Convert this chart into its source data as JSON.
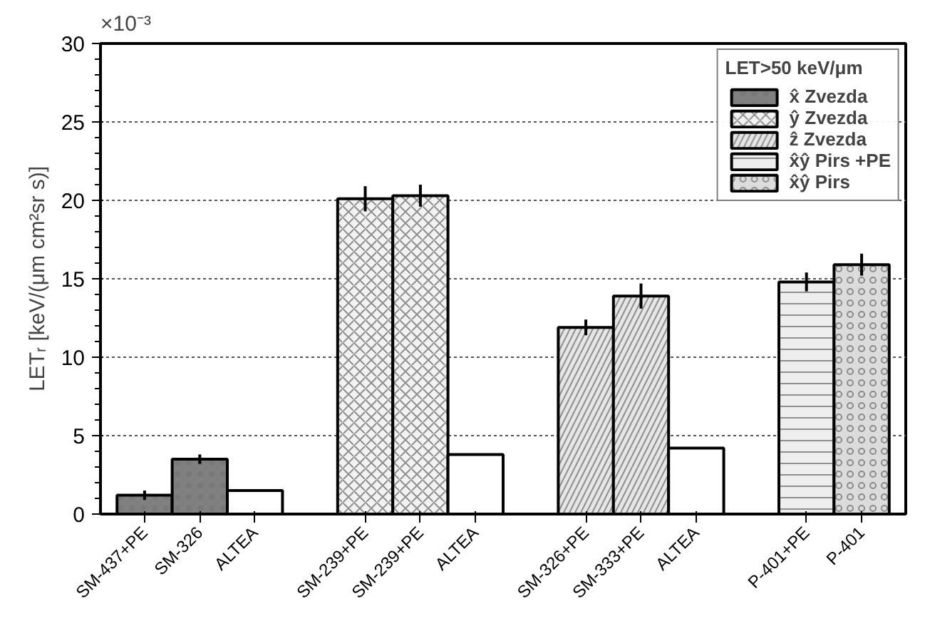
{
  "chart_data": {
    "type": "bar",
    "ylabel": "LETᵣ [keV/(μm cm²sr s)]",
    "legend_title": "LET>50 keV/μm",
    "categories": [
      "SM-437+PE",
      "SM-326",
      "ALTEA",
      null,
      "SM-239+PE",
      "SM-239+PE",
      "ALTEA",
      null,
      "SM-326+PE",
      "SM-333+PE",
      "ALTEA",
      null,
      "P-401+PE",
      "P-401"
    ],
    "series": [
      {
        "name": "x̂ Zvezda",
        "color": "#808080",
        "values": [
          1.2,
          3.5,
          null,
          null,
          null,
          null,
          null,
          null,
          null,
          null,
          null,
          null,
          null,
          null
        ],
        "errors": [
          0.3,
          0.3,
          null,
          null,
          null,
          null,
          null,
          null,
          null,
          null,
          null,
          null,
          null,
          null
        ]
      },
      {
        "name": "ŷ Zvezda",
        "color": "#f2f2f2",
        "values": [
          null,
          null,
          null,
          null,
          20.1,
          20.3,
          null,
          null,
          null,
          null,
          null,
          null,
          null,
          null
        ],
        "errors": [
          null,
          null,
          null,
          null,
          0.8,
          0.7,
          null,
          null,
          null,
          null,
          null,
          null,
          null,
          null
        ]
      },
      {
        "name": "ẑ Zvezda",
        "color": "#e6e6e6",
        "values": [
          null,
          null,
          null,
          null,
          null,
          null,
          null,
          null,
          11.9,
          13.9,
          null,
          null,
          null,
          null
        ],
        "errors": [
          null,
          null,
          null,
          null,
          null,
          null,
          null,
          null,
          0.5,
          0.8,
          null,
          null,
          null,
          null
        ]
      },
      {
        "name": "x̂ŷ Pirs +PE",
        "color": "#eeeeee",
        "values": [
          null,
          null,
          null,
          null,
          null,
          null,
          null,
          null,
          null,
          null,
          null,
          null,
          14.8,
          null
        ],
        "errors": [
          null,
          null,
          null,
          null,
          null,
          null,
          null,
          null,
          null,
          null,
          null,
          null,
          0.6,
          null
        ]
      },
      {
        "name": "x̂ŷ Pirs",
        "color": "#dcdcdc",
        "values": [
          null,
          null,
          null,
          null,
          null,
          null,
          null,
          null,
          null,
          null,
          null,
          null,
          null,
          15.9
        ],
        "errors": [
          null,
          null,
          null,
          null,
          null,
          null,
          null,
          null,
          null,
          null,
          null,
          null,
          null,
          0.7
        ]
      },
      {
        "color": "#ffffff",
        "values": [
          null,
          null,
          1.5,
          null,
          null,
          null,
          3.8,
          null,
          null,
          null,
          4.2,
          null,
          null,
          null
        ]
      }
    ],
    "ylim": [
      0,
      30
    ],
    "yticks": [
      0,
      5,
      10,
      15,
      20,
      25,
      30
    ],
    "grid": "y",
    "legend": "top right",
    "annotations": [
      "×10⁻³"
    ]
  }
}
